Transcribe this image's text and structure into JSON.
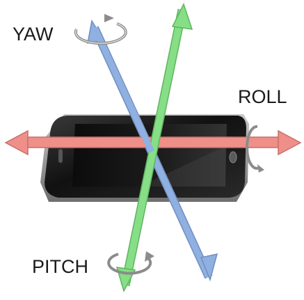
{
  "labels": {
    "yaw": "YAW",
    "roll": "ROLL",
    "pitch": "PITCH"
  },
  "colors": {
    "yaw_axis": "#8fb0e0",
    "roll_axis": "#ef8f8a",
    "pitch_axis": "#86de86",
    "rotation_arrow": "#8c8c8c",
    "phone_body": "#161616",
    "phone_bezel": "#9a9a9a",
    "background": "#ffffff"
  },
  "icons": {
    "yaw_rotation": "circular-arrow-icon",
    "roll_rotation": "circular-arrow-icon",
    "pitch_rotation": "circular-arrow-icon"
  }
}
